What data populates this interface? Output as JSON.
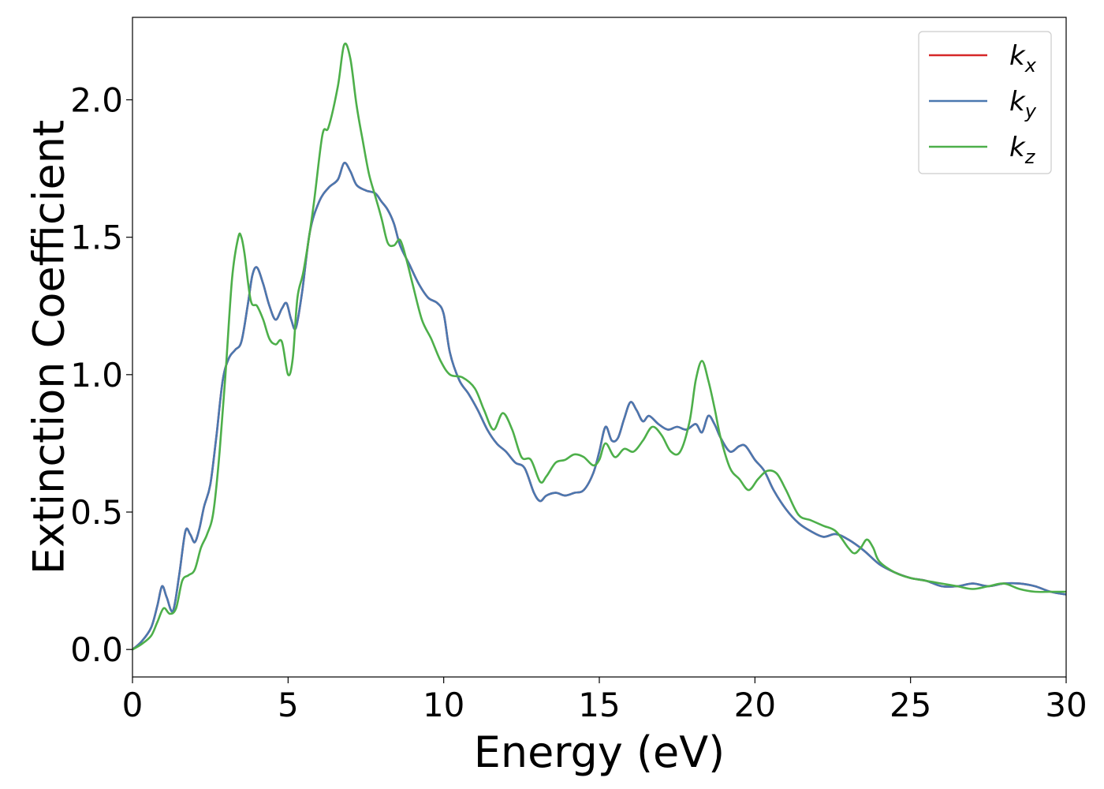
{
  "chart_data": {
    "type": "line",
    "title": "",
    "xlabel": "Energy (eV)",
    "ylabel": "Extinction Coefficient",
    "xlim": [
      0,
      30
    ],
    "ylim": [
      -0.1,
      2.3
    ],
    "xticks": [
      0,
      5,
      10,
      15,
      20,
      25,
      30
    ],
    "xtick_labels": [
      "0",
      "5",
      "10",
      "15",
      "20",
      "25",
      "30"
    ],
    "yticks": [
      0.0,
      0.5,
      1.0,
      1.5,
      2.0
    ],
    "ytick_labels": [
      "0.0",
      "0.5",
      "1.0",
      "1.5",
      "2.0"
    ],
    "grid": false,
    "legend_position": "top-right",
    "series": [
      {
        "name": "k_x",
        "legend_main": "k",
        "legend_sub": "x",
        "color": "#d62728",
        "x": [
          0,
          0.3,
          0.6,
          0.8,
          0.95,
          1.1,
          1.3,
          1.5,
          1.7,
          1.85,
          2.0,
          2.15,
          2.3,
          2.5,
          2.7,
          2.9,
          3.1,
          3.3,
          3.5,
          3.7,
          3.85,
          4.0,
          4.2,
          4.4,
          4.6,
          4.8,
          4.95,
          5.1,
          5.25,
          5.45,
          5.7,
          6.0,
          6.3,
          6.6,
          6.8,
          7.0,
          7.2,
          7.5,
          7.8,
          8.0,
          8.2,
          8.4,
          8.6,
          8.9,
          9.2,
          9.5,
          9.8,
          10.0,
          10.2,
          10.5,
          10.8,
          11.1,
          11.4,
          11.7,
          12.0,
          12.3,
          12.6,
          12.9,
          13.1,
          13.3,
          13.6,
          13.9,
          14.2,
          14.5,
          14.8,
          15.0,
          15.2,
          15.4,
          15.6,
          15.8,
          16.0,
          16.2,
          16.4,
          16.6,
          16.9,
          17.2,
          17.5,
          17.8,
          18.1,
          18.3,
          18.5,
          18.7,
          18.9,
          19.2,
          19.5,
          19.7,
          20.0,
          20.3,
          20.6,
          21.0,
          21.4,
          21.8,
          22.2,
          22.6,
          23.0,
          23.5,
          24.0,
          24.5,
          25.0,
          25.5,
          26.0,
          26.5,
          27.0,
          27.5,
          28.0,
          28.5,
          29.0,
          29.5,
          30.0
        ],
        "y": [
          0.0,
          0.03,
          0.08,
          0.16,
          0.23,
          0.19,
          0.14,
          0.27,
          0.43,
          0.42,
          0.39,
          0.44,
          0.52,
          0.6,
          0.78,
          0.98,
          1.06,
          1.09,
          1.12,
          1.25,
          1.36,
          1.39,
          1.33,
          1.25,
          1.2,
          1.24,
          1.26,
          1.2,
          1.17,
          1.3,
          1.52,
          1.63,
          1.68,
          1.71,
          1.77,
          1.74,
          1.69,
          1.67,
          1.66,
          1.63,
          1.6,
          1.55,
          1.47,
          1.4,
          1.33,
          1.28,
          1.26,
          1.22,
          1.08,
          0.98,
          0.93,
          0.87,
          0.8,
          0.75,
          0.72,
          0.68,
          0.66,
          0.57,
          0.54,
          0.56,
          0.57,
          0.56,
          0.57,
          0.58,
          0.64,
          0.72,
          0.81,
          0.76,
          0.77,
          0.84,
          0.9,
          0.87,
          0.83,
          0.85,
          0.82,
          0.8,
          0.81,
          0.8,
          0.82,
          0.79,
          0.85,
          0.82,
          0.77,
          0.72,
          0.74,
          0.74,
          0.69,
          0.65,
          0.58,
          0.51,
          0.46,
          0.43,
          0.41,
          0.42,
          0.4,
          0.36,
          0.31,
          0.28,
          0.26,
          0.25,
          0.23,
          0.23,
          0.24,
          0.23,
          0.24,
          0.24,
          0.23,
          0.21,
          0.2
        ]
      },
      {
        "name": "k_y",
        "legend_main": "k",
        "legend_sub": "y",
        "color": "#4a78b0",
        "x": [
          0,
          0.3,
          0.6,
          0.8,
          0.95,
          1.1,
          1.3,
          1.5,
          1.7,
          1.85,
          2.0,
          2.15,
          2.3,
          2.5,
          2.7,
          2.9,
          3.1,
          3.3,
          3.5,
          3.7,
          3.85,
          4.0,
          4.2,
          4.4,
          4.6,
          4.8,
          4.95,
          5.1,
          5.25,
          5.45,
          5.7,
          6.0,
          6.3,
          6.6,
          6.8,
          7.0,
          7.2,
          7.5,
          7.8,
          8.0,
          8.2,
          8.4,
          8.6,
          8.9,
          9.2,
          9.5,
          9.8,
          10.0,
          10.2,
          10.5,
          10.8,
          11.1,
          11.4,
          11.7,
          12.0,
          12.3,
          12.6,
          12.9,
          13.1,
          13.3,
          13.6,
          13.9,
          14.2,
          14.5,
          14.8,
          15.0,
          15.2,
          15.4,
          15.6,
          15.8,
          16.0,
          16.2,
          16.4,
          16.6,
          16.9,
          17.2,
          17.5,
          17.8,
          18.1,
          18.3,
          18.5,
          18.7,
          18.9,
          19.2,
          19.5,
          19.7,
          20.0,
          20.3,
          20.6,
          21.0,
          21.4,
          21.8,
          22.2,
          22.6,
          23.0,
          23.5,
          24.0,
          24.5,
          25.0,
          25.5,
          26.0,
          26.5,
          27.0,
          27.5,
          28.0,
          28.5,
          29.0,
          29.5,
          30.0
        ],
        "y": [
          0.0,
          0.03,
          0.08,
          0.16,
          0.23,
          0.19,
          0.14,
          0.27,
          0.43,
          0.42,
          0.39,
          0.44,
          0.52,
          0.6,
          0.78,
          0.98,
          1.06,
          1.09,
          1.12,
          1.25,
          1.36,
          1.39,
          1.33,
          1.25,
          1.2,
          1.24,
          1.26,
          1.2,
          1.17,
          1.3,
          1.52,
          1.63,
          1.68,
          1.71,
          1.77,
          1.74,
          1.69,
          1.67,
          1.66,
          1.63,
          1.6,
          1.55,
          1.47,
          1.4,
          1.33,
          1.28,
          1.26,
          1.22,
          1.08,
          0.98,
          0.93,
          0.87,
          0.8,
          0.75,
          0.72,
          0.68,
          0.66,
          0.57,
          0.54,
          0.56,
          0.57,
          0.56,
          0.57,
          0.58,
          0.64,
          0.72,
          0.81,
          0.76,
          0.77,
          0.84,
          0.9,
          0.87,
          0.83,
          0.85,
          0.82,
          0.8,
          0.81,
          0.8,
          0.82,
          0.79,
          0.85,
          0.82,
          0.77,
          0.72,
          0.74,
          0.74,
          0.69,
          0.65,
          0.58,
          0.51,
          0.46,
          0.43,
          0.41,
          0.42,
          0.4,
          0.36,
          0.31,
          0.28,
          0.26,
          0.25,
          0.23,
          0.23,
          0.24,
          0.23,
          0.24,
          0.24,
          0.23,
          0.21,
          0.2
        ]
      },
      {
        "name": "k_z",
        "legend_main": "k",
        "legend_sub": "z",
        "color": "#4daf4a",
        "x": [
          0,
          0.3,
          0.6,
          0.8,
          1.0,
          1.2,
          1.4,
          1.6,
          1.8,
          2.0,
          2.2,
          2.4,
          2.6,
          2.8,
          3.0,
          3.2,
          3.4,
          3.5,
          3.6,
          3.8,
          4.0,
          4.2,
          4.4,
          4.6,
          4.8,
          5.0,
          5.15,
          5.3,
          5.5,
          5.8,
          6.1,
          6.3,
          6.6,
          6.8,
          7.0,
          7.2,
          7.4,
          7.6,
          7.8,
          8.0,
          8.2,
          8.4,
          8.6,
          8.8,
          9.0,
          9.3,
          9.6,
          9.9,
          10.2,
          10.6,
          11.0,
          11.3,
          11.6,
          11.9,
          12.2,
          12.5,
          12.8,
          13.1,
          13.3,
          13.6,
          13.9,
          14.2,
          14.5,
          14.8,
          15.0,
          15.2,
          15.5,
          15.8,
          16.1,
          16.4,
          16.7,
          17.0,
          17.3,
          17.6,
          17.9,
          18.1,
          18.3,
          18.5,
          18.7,
          18.9,
          19.2,
          19.5,
          19.8,
          20.1,
          20.4,
          20.7,
          21.0,
          21.4,
          21.8,
          22.2,
          22.6,
          23.0,
          23.2,
          23.4,
          23.6,
          23.8,
          24.0,
          24.5,
          25.0,
          25.5,
          26.0,
          26.5,
          27.0,
          27.5,
          28.0,
          28.5,
          29.0,
          29.5,
          30.0
        ],
        "y": [
          0.0,
          0.02,
          0.05,
          0.1,
          0.15,
          0.13,
          0.15,
          0.25,
          0.27,
          0.29,
          0.37,
          0.42,
          0.5,
          0.72,
          1.02,
          1.35,
          1.5,
          1.5,
          1.44,
          1.27,
          1.25,
          1.2,
          1.13,
          1.11,
          1.12,
          1.0,
          1.06,
          1.28,
          1.38,
          1.6,
          1.87,
          1.9,
          2.05,
          2.2,
          2.15,
          1.98,
          1.85,
          1.73,
          1.65,
          1.57,
          1.48,
          1.47,
          1.49,
          1.42,
          1.33,
          1.2,
          1.13,
          1.05,
          1.0,
          0.99,
          0.95,
          0.87,
          0.8,
          0.86,
          0.8,
          0.7,
          0.69,
          0.61,
          0.63,
          0.68,
          0.69,
          0.71,
          0.7,
          0.67,
          0.69,
          0.75,
          0.7,
          0.73,
          0.72,
          0.76,
          0.81,
          0.78,
          0.72,
          0.72,
          0.83,
          0.98,
          1.05,
          0.98,
          0.88,
          0.77,
          0.66,
          0.62,
          0.58,
          0.62,
          0.65,
          0.64,
          0.58,
          0.49,
          0.47,
          0.45,
          0.43,
          0.37,
          0.35,
          0.37,
          0.4,
          0.37,
          0.32,
          0.28,
          0.26,
          0.25,
          0.24,
          0.23,
          0.22,
          0.23,
          0.24,
          0.22,
          0.21,
          0.21,
          0.21
        ]
      }
    ]
  }
}
